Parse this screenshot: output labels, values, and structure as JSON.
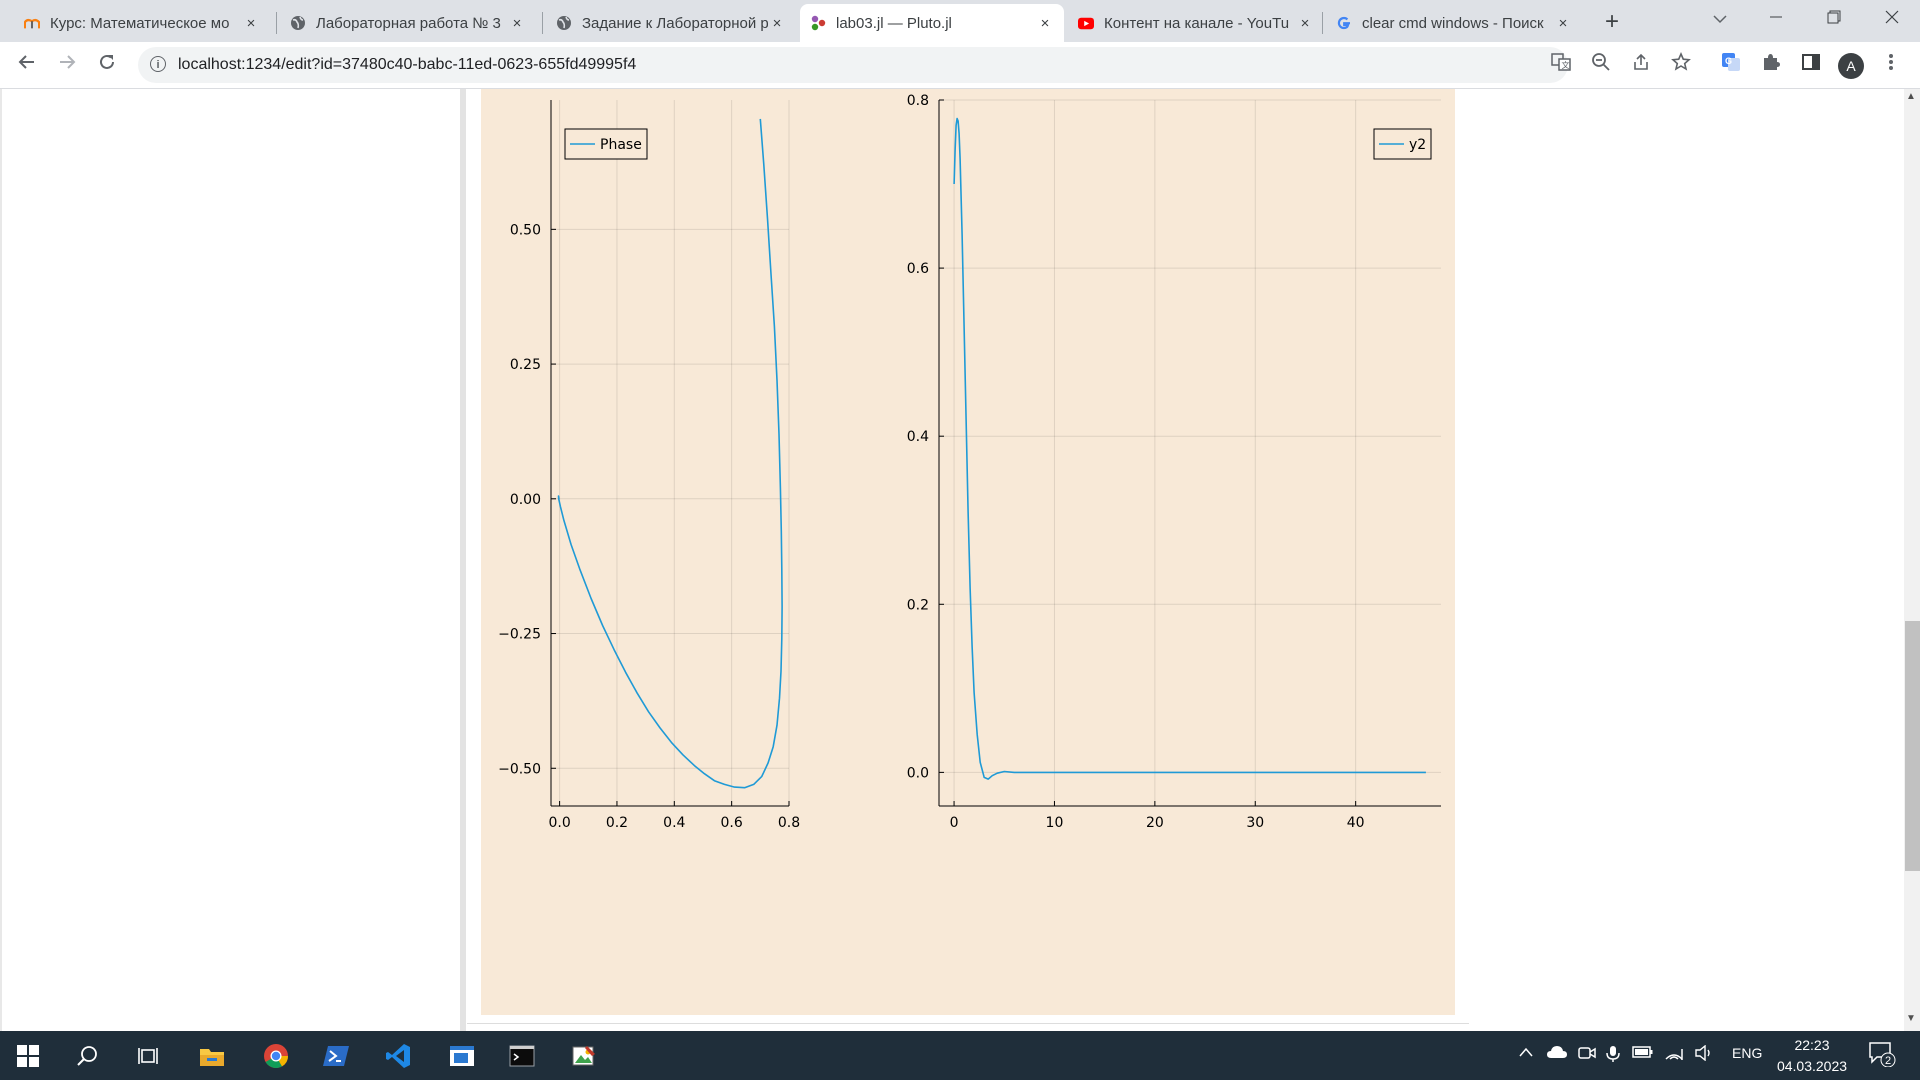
{
  "browser": {
    "tabs": [
      {
        "title": "Курс: Математическое мо",
        "icon": "moodle-icon",
        "active": false
      },
      {
        "title": "Лабораторная работа № 3",
        "icon": "globe-icon",
        "active": false
      },
      {
        "title": "Задание к Лабораторной р",
        "icon": "globe-icon",
        "active": false
      },
      {
        "title": "lab03.jl — Pluto.jl",
        "icon": "pluto-icon",
        "active": true
      },
      {
        "title": "Контент на канале - YouTu",
        "icon": "youtube-icon",
        "active": false
      },
      {
        "title": "clear cmd windows - Поиск",
        "icon": "google-icon",
        "active": false
      }
    ],
    "close_glyph": "×",
    "new_tab_glyph": "+",
    "url": "localhost:1234/edit?id=37480c40-babc-11ed-0623-655fd49995f4",
    "profile_initial": "A"
  },
  "chart_data": [
    {
      "type": "line",
      "title": "",
      "xlabel": "",
      "ylabel": "",
      "xlim": [
        -0.03,
        0.8
      ],
      "ylim": [
        -0.57,
        0.74
      ],
      "xticks": [
        0.0,
        0.2,
        0.4,
        0.6,
        0.8
      ],
      "xtick_labels": [
        "0.0",
        "0.2",
        "0.4",
        "0.6",
        "0.8"
      ],
      "yticks": [
        0.5,
        0.25,
        0.0,
        -0.25,
        -0.5
      ],
      "ytick_labels": [
        "0.50",
        "0.25",
        "0.00",
        "−0.25",
        "−0.50"
      ],
      "legend": "top-left",
      "grid": true,
      "series": [
        {
          "name": "Phase",
          "color": "#1f9ad6",
          "x": [
            0.7,
            0.712,
            0.725,
            0.737,
            0.749,
            0.758,
            0.765,
            0.77,
            0.773,
            0.775,
            0.776,
            0.775,
            0.772,
            0.767,
            0.758,
            0.745,
            0.727,
            0.705,
            0.677,
            0.645,
            0.61,
            0.575,
            0.54,
            0.505,
            0.47,
            0.43,
            0.39,
            0.35,
            0.31,
            0.27,
            0.23,
            0.19,
            0.15,
            0.11,
            0.07,
            0.04,
            0.015,
            0.003,
            -0.003,
            -0.004,
            -0.002
          ],
          "y": [
            0.705,
            0.62,
            0.52,
            0.42,
            0.32,
            0.22,
            0.12,
            0.02,
            -0.06,
            -0.13,
            -0.2,
            -0.26,
            -0.32,
            -0.37,
            -0.42,
            -0.46,
            -0.49,
            -0.515,
            -0.53,
            -0.536,
            -0.535,
            -0.53,
            -0.523,
            -0.51,
            -0.495,
            -0.475,
            -0.452,
            -0.425,
            -0.395,
            -0.36,
            -0.322,
            -0.28,
            -0.235,
            -0.185,
            -0.13,
            -0.085,
            -0.04,
            -0.015,
            0.0,
            0.005,
            0.0
          ]
        }
      ]
    },
    {
      "type": "line",
      "title": "",
      "xlabel": "",
      "ylabel": "",
      "xlim": [
        -1.5,
        48.5
      ],
      "ylim": [
        -0.04,
        0.8
      ],
      "xticks": [
        0,
        10,
        20,
        30,
        40
      ],
      "xtick_labels": [
        "0",
        "10",
        "20",
        "30",
        "40"
      ],
      "yticks": [
        0.0,
        0.2,
        0.4,
        0.6,
        0.8
      ],
      "ytick_labels": [
        "0.0",
        "0.2",
        "0.4",
        "0.6",
        "0.8"
      ],
      "legend": "top-right",
      "grid": true,
      "series": [
        {
          "name": "y2",
          "color": "#1f9ad6",
          "x": [
            0,
            0.1,
            0.2,
            0.3,
            0.4,
            0.5,
            0.6,
            0.8,
            1.0,
            1.2,
            1.4,
            1.6,
            1.8,
            2.0,
            2.3,
            2.6,
            3.0,
            3.4,
            3.8,
            4.3,
            5.0,
            6.0,
            8.0,
            12.0,
            20.0,
            30.0,
            40.0,
            47.0
          ],
          "y": [
            0.7,
            0.74,
            0.77,
            0.778,
            0.775,
            0.76,
            0.73,
            0.64,
            0.53,
            0.42,
            0.31,
            0.22,
            0.15,
            0.095,
            0.045,
            0.012,
            -0.006,
            -0.008,
            -0.004,
            -0.001,
            0.001,
            0.0,
            0.0,
            0.0,
            0.0,
            0.0,
            0.0,
            0.0
          ]
        }
      ]
    }
  ],
  "taskbar": {
    "language": "ENG",
    "time": "22:23",
    "date": "04.03.2023",
    "notification_count": "2"
  },
  "colors": {
    "plot_bg": "#f8e9d7",
    "series": "#1f9ad6",
    "taskbar": "#1f2e3a"
  }
}
